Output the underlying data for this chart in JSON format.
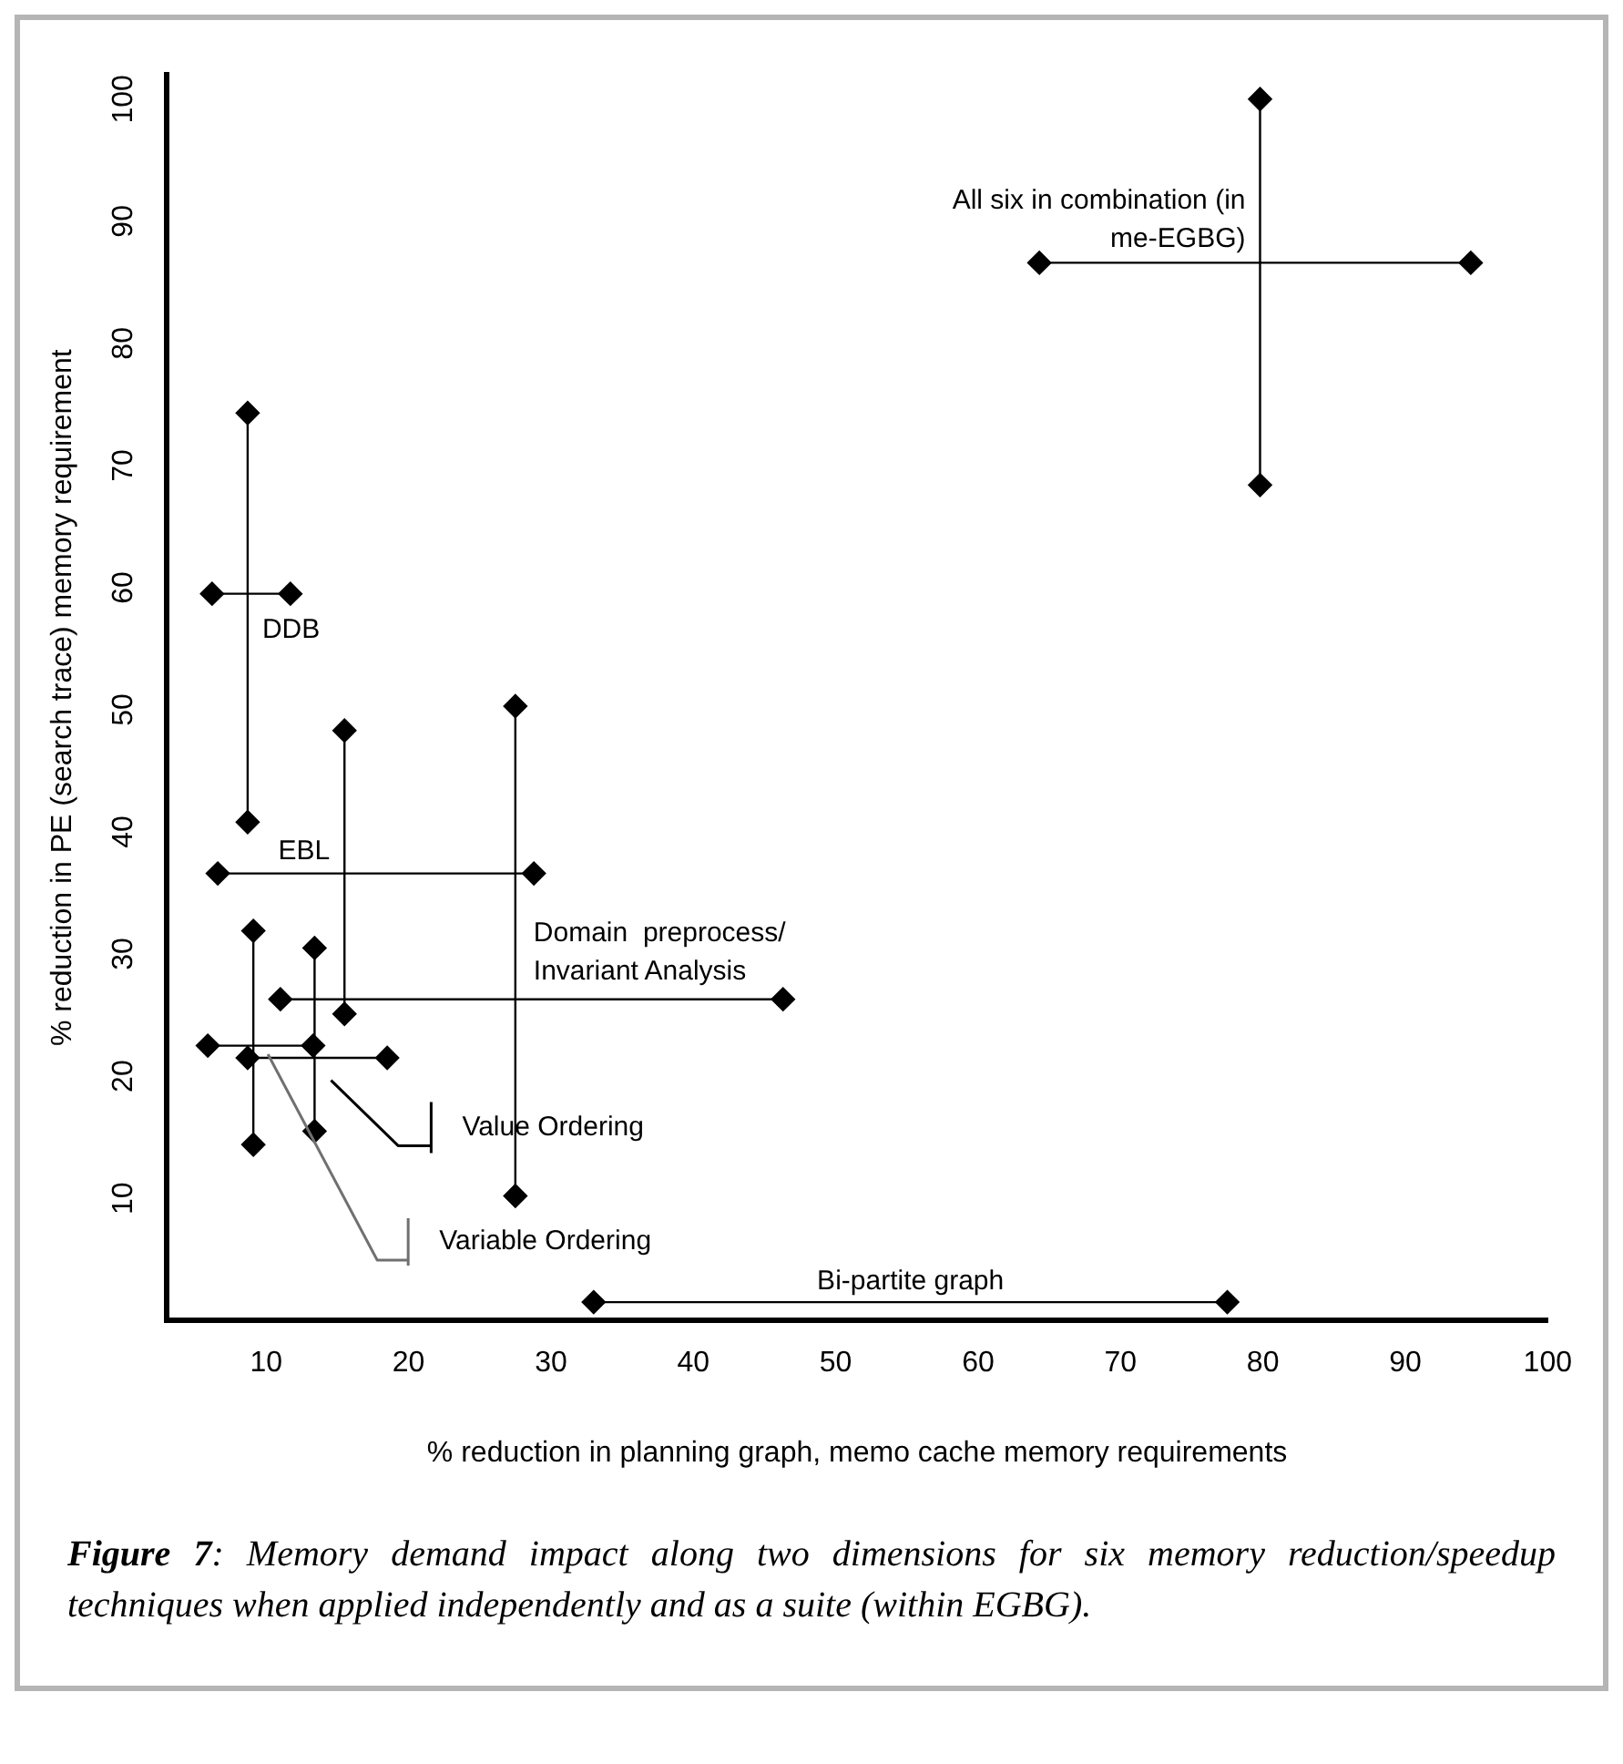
{
  "chart_data": {
    "type": "line",
    "xlabel": "% reduction in planning graph, memo cache memory requirements",
    "ylabel": "% reduction in PE (search trace) memory requirement",
    "xlim": [
      3,
      100
    ],
    "xticks": [
      10,
      20,
      30,
      40,
      50,
      60,
      70,
      80,
      90,
      100
    ],
    "ylim": [
      0,
      102
    ],
    "yticks": [
      10,
      20,
      30,
      40,
      50,
      60,
      70,
      80,
      90,
      100
    ],
    "grid": false,
    "marker": "diamond",
    "line_style": "solid",
    "series": [
      {
        "name": "DDB",
        "color": "#000000",
        "x": [
          6.2,
          11.7
        ],
        "values": [
          59.5,
          59.5
        ]
      },
      {
        "color": "#000000",
        "x": [
          8.7,
          8.7
        ],
        "values": [
          74.3,
          40.8
        ]
      },
      {
        "name": "EBL",
        "color": "#000000",
        "x": [
          6.6,
          28.8
        ],
        "values": [
          36.6,
          36.6
        ]
      },
      {
        "color": "#000000",
        "x": [
          15.5,
          15.5
        ],
        "values": [
          48.3,
          25.1
        ]
      },
      {
        "name": "Domain  preprocess/ Invariant Analysis",
        "color": "#000000",
        "x": [
          11.0,
          46.3
        ],
        "values": [
          26.3,
          26.3
        ]
      },
      {
        "color": "#000000",
        "x": [
          27.5,
          27.5
        ],
        "values": [
          50.3,
          10.2
        ]
      },
      {
        "name": "Value Ordering",
        "color": "#000000",
        "x": [
          5.9,
          13.3
        ],
        "values": [
          22.5,
          22.5
        ]
      },
      {
        "color": "#000000",
        "x": [
          13.4,
          13.4
        ],
        "values": [
          30.5,
          15.5
        ]
      },
      {
        "name": "Variable Ordering",
        "color": "#000000",
        "x": [
          8.7,
          18.5
        ],
        "values": [
          21.5,
          21.5
        ]
      },
      {
        "color": "#000000",
        "x": [
          9.1,
          9.1
        ],
        "values": [
          31.9,
          14.4
        ]
      },
      {
        "name": "All six in combination (in me-EGBG)",
        "color": "#000000",
        "x": [
          64.3,
          94.6
        ],
        "values": [
          86.6,
          86.6
        ]
      },
      {
        "color": "#000000",
        "x": [
          79.8,
          79.8
        ],
        "values": [
          100,
          68.4
        ]
      },
      {
        "name": "Bi-partite graph",
        "color": "#000000",
        "x": [
          33.0,
          77.5
        ],
        "values": [
          1.5,
          1.5
        ]
      }
    ],
    "annotations": [
      "Figure 7: Memory demand impact along two dimensions for six memory reduction/speedup techniques when applied independently and as a suite (within EGBG)."
    ]
  }
}
